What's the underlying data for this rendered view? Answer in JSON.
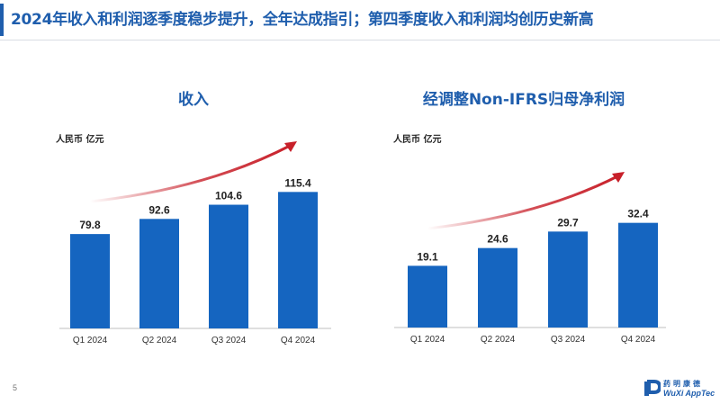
{
  "page": {
    "title": "2024年收入和利润逐季度稳步提升，全年达成指引；第四季度收入和利润均创历史新高",
    "page_number": "5"
  },
  "colors": {
    "accent": "#1F5EAD",
    "bar": "#1565C0",
    "arrow": "#C8202A",
    "axis": "#BFBFBF"
  },
  "logo": {
    "name_cn": "药明康德",
    "name_en": "WuXi AppTec",
    "icon": "wuxi-apptec-logo-icon"
  },
  "chart_data": [
    {
      "type": "bar",
      "title": "收入",
      "unit": "人民币 亿元",
      "categories": [
        "Q1 2024",
        "Q2 2024",
        "Q3 2024",
        "Q4 2024"
      ],
      "values": [
        79.8,
        92.6,
        104.6,
        115.4
      ],
      "value_labels": [
        "79.8",
        "92.6",
        "104.6",
        "115.4"
      ],
      "ylim": [
        0,
        175
      ],
      "trend_arrow": "rising",
      "grid": false
    },
    {
      "type": "bar",
      "title": "经调整Non-IFRS归母净利润",
      "unit": "人民币 亿元",
      "categories": [
        "Q1 2024",
        "Q2 2024",
        "Q3 2024",
        "Q4 2024"
      ],
      "values": [
        19.1,
        24.6,
        29.7,
        32.4
      ],
      "value_labels": [
        "19.1",
        "24.6",
        "29.7",
        "32.4"
      ],
      "ylim": [
        0,
        44
      ],
      "trend_arrow": "rising",
      "grid": false
    }
  ]
}
